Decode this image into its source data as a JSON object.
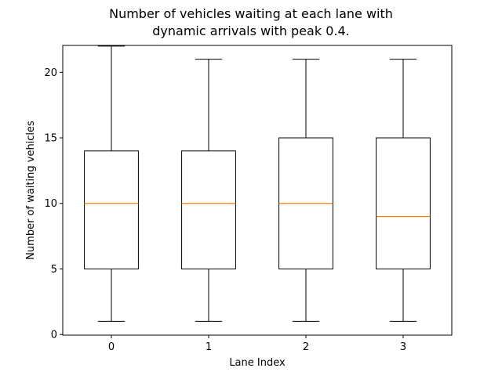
{
  "chart_data": {
    "type": "box",
    "title_lines": [
      "Number of vehicles waiting at each lane with",
      "dynamic arrivals with peak 0.4."
    ],
    "xlabel": "Lane Index",
    "ylabel": "Number of waiting vehicles",
    "categories": [
      "0",
      "1",
      "2",
      "3"
    ],
    "boxes": [
      {
        "label": "0",
        "whisker_low": 1,
        "q1": 5,
        "median": 10,
        "q3": 14,
        "whisker_high": 22
      },
      {
        "label": "1",
        "whisker_low": 1,
        "q1": 5,
        "median": 10,
        "q3": 14,
        "whisker_high": 21
      },
      {
        "label": "2",
        "whisker_low": 1,
        "q1": 5,
        "median": 10,
        "q3": 15,
        "whisker_high": 21
      },
      {
        "label": "3",
        "whisker_low": 1,
        "q1": 5,
        "median": 9,
        "q3": 15,
        "whisker_high": 21
      }
    ],
    "ylim": [
      -0.05,
      22.05
    ],
    "yticks": [
      0,
      5,
      10,
      15,
      20
    ],
    "grid": false,
    "colors": {
      "box": "#000000",
      "median": "#ff7f0e",
      "whisker": "#000000",
      "background": "#ffffff"
    }
  }
}
